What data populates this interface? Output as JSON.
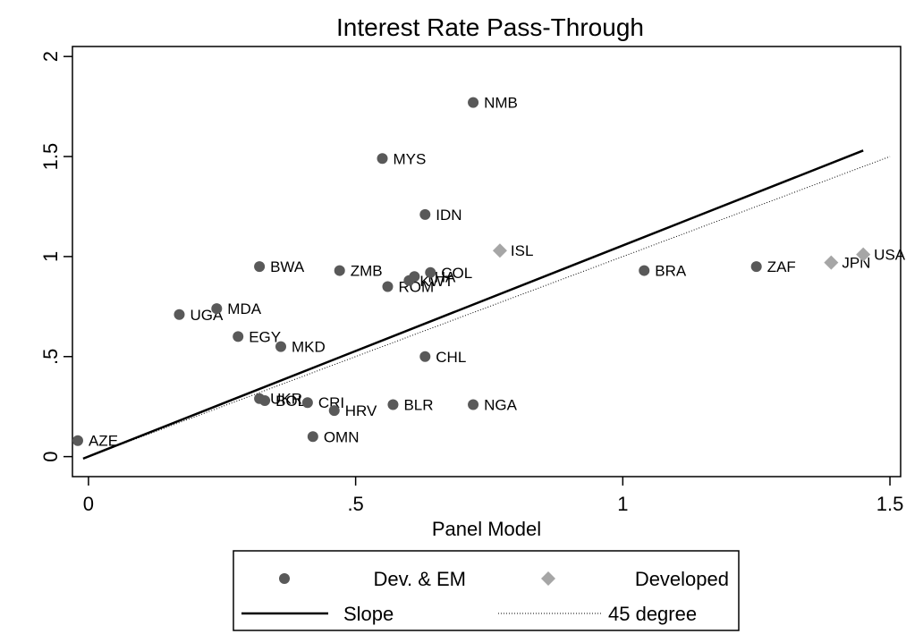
{
  "chart_data": {
    "type": "scatter",
    "title": "Interest Rate Pass-Through",
    "xlabel": "Panel Model",
    "ylabel": "",
    "xlim": [
      -0.03,
      1.52
    ],
    "ylim": [
      -0.1,
      2.05
    ],
    "x_ticks": [
      {
        "value": 0,
        "label": "0"
      },
      {
        "value": 0.5,
        "label": ".5"
      },
      {
        "value": 1,
        "label": "1"
      },
      {
        "value": 1.5,
        "label": "1.5"
      }
    ],
    "y_ticks": [
      {
        "value": 0,
        "label": "0"
      },
      {
        "value": 0.5,
        "label": ".5"
      },
      {
        "value": 1,
        "label": "1"
      },
      {
        "value": 1.5,
        "label": "1.5"
      },
      {
        "value": 2,
        "label": "2"
      }
    ],
    "grid": false,
    "legend_position": "bottom",
    "series": [
      {
        "name": "Dev. & EM",
        "marker": "circle",
        "color": "#595959",
        "points": [
          {
            "label": "AZE",
            "x": -0.02,
            "y": 0.08
          },
          {
            "label": "UGA",
            "x": 0.17,
            "y": 0.71
          },
          {
            "label": "MDA",
            "x": 0.24,
            "y": 0.74
          },
          {
            "label": "EGY",
            "x": 0.28,
            "y": 0.6
          },
          {
            "label": "BWA",
            "x": 0.32,
            "y": 0.95
          },
          {
            "label": "MKD",
            "x": 0.36,
            "y": 0.55
          },
          {
            "label": "UKR",
            "x": 0.32,
            "y": 0.29
          },
          {
            "label": "BOL",
            "x": 0.33,
            "y": 0.28
          },
          {
            "label": "CRI",
            "x": 0.41,
            "y": 0.27
          },
          {
            "label": "HRV",
            "x": 0.46,
            "y": 0.23
          },
          {
            "label": "OMN",
            "x": 0.42,
            "y": 0.1
          },
          {
            "label": "ZMB",
            "x": 0.47,
            "y": 0.93
          },
          {
            "label": "ROM",
            "x": 0.56,
            "y": 0.85
          },
          {
            "label": "KWT",
            "x": 0.6,
            "y": 0.88
          },
          {
            "label": "THA",
            "x": 0.61,
            "y": 0.9
          },
          {
            "label": "COL",
            "x": 0.64,
            "y": 0.92
          },
          {
            "label": "MYS",
            "x": 0.55,
            "y": 1.49
          },
          {
            "label": "NMB",
            "x": 0.72,
            "y": 1.77
          },
          {
            "label": "IDN",
            "x": 0.63,
            "y": 1.21
          },
          {
            "label": "CHL",
            "x": 0.63,
            "y": 0.5
          },
          {
            "label": "BLR",
            "x": 0.57,
            "y": 0.26
          },
          {
            "label": "NGA",
            "x": 0.72,
            "y": 0.26
          },
          {
            "label": "BRA",
            "x": 1.04,
            "y": 0.93
          },
          {
            "label": "ZAF",
            "x": 1.25,
            "y": 0.95
          }
        ]
      },
      {
        "name": "Developed",
        "marker": "diamond",
        "color": "#a6a6a6",
        "points": [
          {
            "label": "ISL",
            "x": 0.77,
            "y": 1.03
          },
          {
            "label": "JPN",
            "x": 1.39,
            "y": 0.97
          },
          {
            "label": "USA",
            "x": 1.45,
            "y": 1.01
          }
        ]
      }
    ],
    "lines": [
      {
        "name": "Slope",
        "style": "solid",
        "color": "#000000",
        "x": [
          -0.01,
          1.45
        ],
        "y": [
          -0.01,
          1.53
        ]
      },
      {
        "name": "45 degree",
        "style": "dotted",
        "color": "#000000",
        "x": [
          -0.01,
          1.5
        ],
        "y": [
          -0.01,
          1.5
        ]
      }
    ]
  }
}
